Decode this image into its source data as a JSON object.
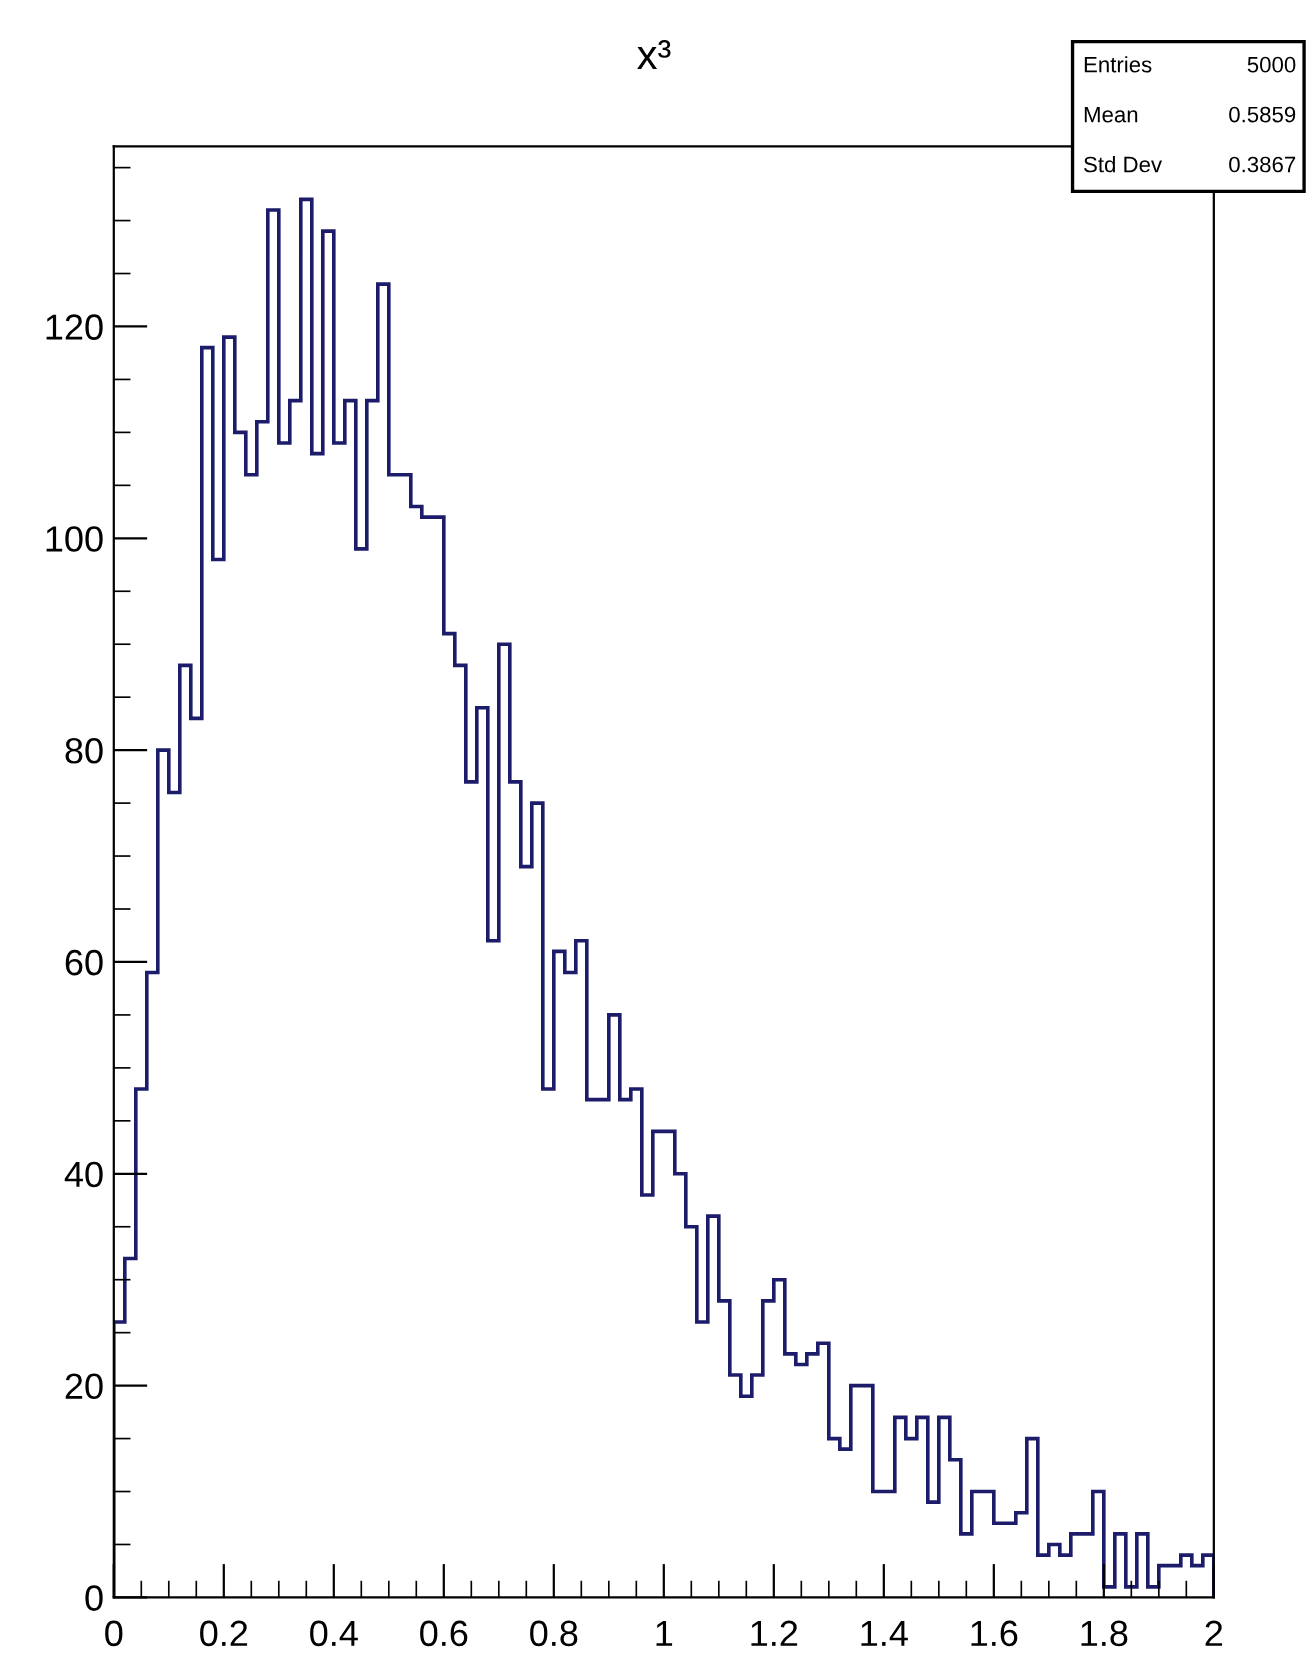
{
  "chart_data": {
    "type": "histogram",
    "title": "x³",
    "bins": [
      0,
      0.02,
      0.04,
      0.06,
      0.08,
      0.1,
      0.12,
      0.14,
      0.16,
      0.18,
      0.2,
      0.22,
      0.24,
      0.26,
      0.28,
      0.3,
      0.32,
      0.34,
      0.36,
      0.38,
      0.4,
      0.42,
      0.44,
      0.46,
      0.48,
      0.5,
      0.52,
      0.54,
      0.56,
      0.58,
      0.6,
      0.62,
      0.64,
      0.66,
      0.68,
      0.7,
      0.72,
      0.74,
      0.76,
      0.78,
      0.8,
      0.82,
      0.84,
      0.86,
      0.88,
      0.9,
      0.92,
      0.94,
      0.96,
      0.98,
      1,
      1.02,
      1.04,
      1.06,
      1.08,
      1.1,
      1.12,
      1.14,
      1.16,
      1.18,
      1.2,
      1.22,
      1.24,
      1.26,
      1.28,
      1.3,
      1.32,
      1.34,
      1.36,
      1.38,
      1.4,
      1.42,
      1.44,
      1.46,
      1.48,
      1.5,
      1.52,
      1.54,
      1.56,
      1.58,
      1.6,
      1.62,
      1.64,
      1.66,
      1.68,
      1.7,
      1.72,
      1.74,
      1.76,
      1.78,
      1.8,
      1.82,
      1.84,
      1.86,
      1.88,
      1.9,
      1.92,
      1.94,
      1.96,
      1.98,
      2
    ],
    "values": [
      26,
      32,
      48,
      59,
      80,
      76,
      88,
      83,
      118,
      98,
      119,
      110,
      106,
      111,
      131,
      109,
      113,
      132,
      108,
      129,
      109,
      113,
      99,
      113,
      124,
      106,
      106,
      103,
      102,
      102,
      91,
      88,
      77,
      84,
      62,
      90,
      77,
      69,
      75,
      48,
      61,
      59,
      62,
      47,
      47,
      55,
      47,
      48,
      38,
      44,
      44,
      40,
      35,
      26,
      36,
      28,
      21,
      19,
      21,
      28,
      30,
      23,
      22,
      23,
      24,
      15,
      14,
      20,
      20,
      10,
      10,
      17,
      15,
      17,
      9,
      17,
      13,
      6,
      10,
      10,
      7,
      7,
      8,
      15,
      4,
      5,
      4,
      6,
      6,
      10,
      1,
      6,
      1,
      6,
      1,
      3,
      3,
      4,
      3,
      4
    ],
    "color": "#1c1c6a",
    "xlim": [
      0,
      2
    ],
    "ylim": [
      0,
      137
    ],
    "xticks": [
      0,
      0.2,
      0.4,
      0.6,
      0.8,
      1,
      1.2,
      1.4,
      1.6,
      1.8,
      2
    ],
    "yticks": [
      0,
      20,
      40,
      60,
      80,
      100,
      120
    ],
    "grid": false,
    "annotations": [
      "Entries 5000",
      "Mean 0.5859",
      "Std Dev 0.3867"
    ]
  }
}
